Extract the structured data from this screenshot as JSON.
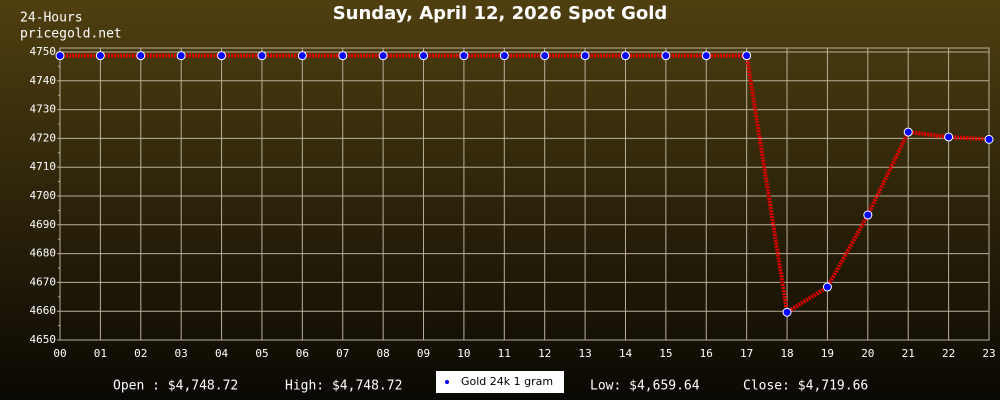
{
  "chart_data": {
    "type": "line",
    "title": "Sunday, April 12, 2026 Spot Gold",
    "period_label": "24-Hours",
    "source": "pricegold.net",
    "categories": [
      "00",
      "01",
      "02",
      "03",
      "04",
      "05",
      "06",
      "07",
      "08",
      "09",
      "10",
      "11",
      "12",
      "13",
      "14",
      "15",
      "16",
      "17",
      "18",
      "19",
      "20",
      "21",
      "22",
      "23"
    ],
    "series": [
      {
        "name": "Gold 24k 1 gram",
        "color": "#e00000",
        "marker_color": "#0000ff",
        "values": [
          4748.72,
          4748.72,
          4748.72,
          4748.72,
          4748.72,
          4748.72,
          4748.72,
          4748.72,
          4748.72,
          4748.72,
          4748.72,
          4748.72,
          4748.72,
          4748.72,
          4748.72,
          4748.72,
          4748.72,
          4748.72,
          4659.64,
          4668.4,
          4693.4,
          4722.2,
          4720.5,
          4719.66
        ]
      }
    ],
    "ylim": [
      4650,
      4750
    ],
    "yticks": [
      4650,
      4660,
      4670,
      4680,
      4690,
      4700,
      4710,
      4720,
      4730,
      4740,
      4750
    ],
    "grid": true,
    "stats": [
      "Open : $4,748.72",
      "High: $4,748.72",
      "Low: $4,659.64",
      "Close: $4,719.66"
    ]
  }
}
